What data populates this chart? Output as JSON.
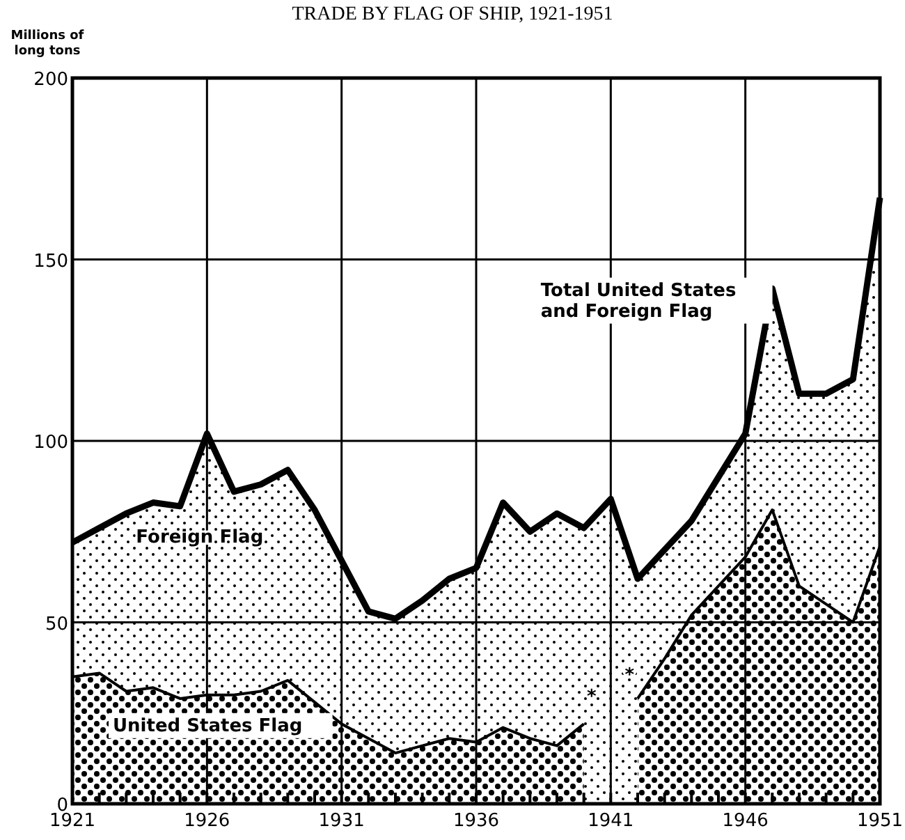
{
  "chart_data": {
    "type": "area",
    "title": "TRADE BY FLAG OF SHIP, 1921-1951",
    "ylabel": "Millions of long tons",
    "x": [
      1921,
      1922,
      1923,
      1924,
      1925,
      1926,
      1927,
      1928,
      1929,
      1930,
      1931,
      1932,
      1933,
      1934,
      1935,
      1936,
      1937,
      1938,
      1939,
      1940,
      1941,
      1942,
      1943,
      1944,
      1945,
      1946,
      1947,
      1948,
      1949,
      1950,
      1951
    ],
    "series": [
      {
        "name": "Total United States and Foreign Flag",
        "color": "#000000",
        "values": [
          72,
          76,
          80,
          83,
          82,
          102,
          86,
          88,
          92,
          81,
          67,
          53,
          51,
          56,
          62,
          65,
          83,
          75,
          80,
          76,
          84,
          62,
          70,
          78,
          90,
          102,
          142,
          113,
          113,
          117,
          167
        ]
      },
      {
        "name": "United States Flag",
        "color": "#000000",
        "values": [
          35,
          36,
          31,
          32,
          29,
          30,
          30,
          31,
          34,
          28,
          22,
          18,
          14,
          16,
          18,
          17,
          21,
          18,
          16,
          22,
          null,
          29,
          40,
          52,
          60,
          68,
          81,
          60,
          55,
          50,
          71
        ]
      }
    ],
    "annotations": [
      "Foreign Flag",
      "*",
      "*"
    ],
    "xlim": [
      1921,
      1951
    ],
    "xticks": [
      1921,
      {
        "value": 1922,
        "label": null
      },
      {
        "value": 1923,
        "label": null
      },
      {
        "value": 1924,
        "label": null
      },
      {
        "value": 1925,
        "label": null
      },
      1926,
      {
        "value": 1927,
        "label": null
      },
      {
        "value": 1928,
        "label": null
      },
      {
        "value": 1929,
        "label": null
      },
      {
        "value": 1930,
        "label": null
      },
      1931,
      {
        "value": 1932,
        "label": null
      },
      {
        "value": 1933,
        "label": null
      },
      {
        "value": 1934,
        "label": null
      },
      {
        "value": 1935,
        "label": null
      },
      1936,
      {
        "value": 1937,
        "label": null
      },
      {
        "value": 1938,
        "label": null
      },
      {
        "value": 1939,
        "label": null
      },
      {
        "value": 1940,
        "label": null
      },
      1941,
      {
        "value": 1942,
        "label": null
      },
      {
        "value": 1943,
        "label": null
      },
      {
        "value": 1944,
        "label": null
      },
      {
        "value": 1945,
        "label": null
      },
      1946,
      {
        "value": 1947,
        "label": null
      },
      {
        "value": 1948,
        "label": null
      },
      {
        "value": 1949,
        "label": null
      },
      {
        "value": 1950,
        "label": null
      },
      1951
    ],
    "ylim": [
      0,
      200
    ],
    "yticks": [
      0,
      50,
      100,
      150,
      200
    ],
    "grid": true
  }
}
